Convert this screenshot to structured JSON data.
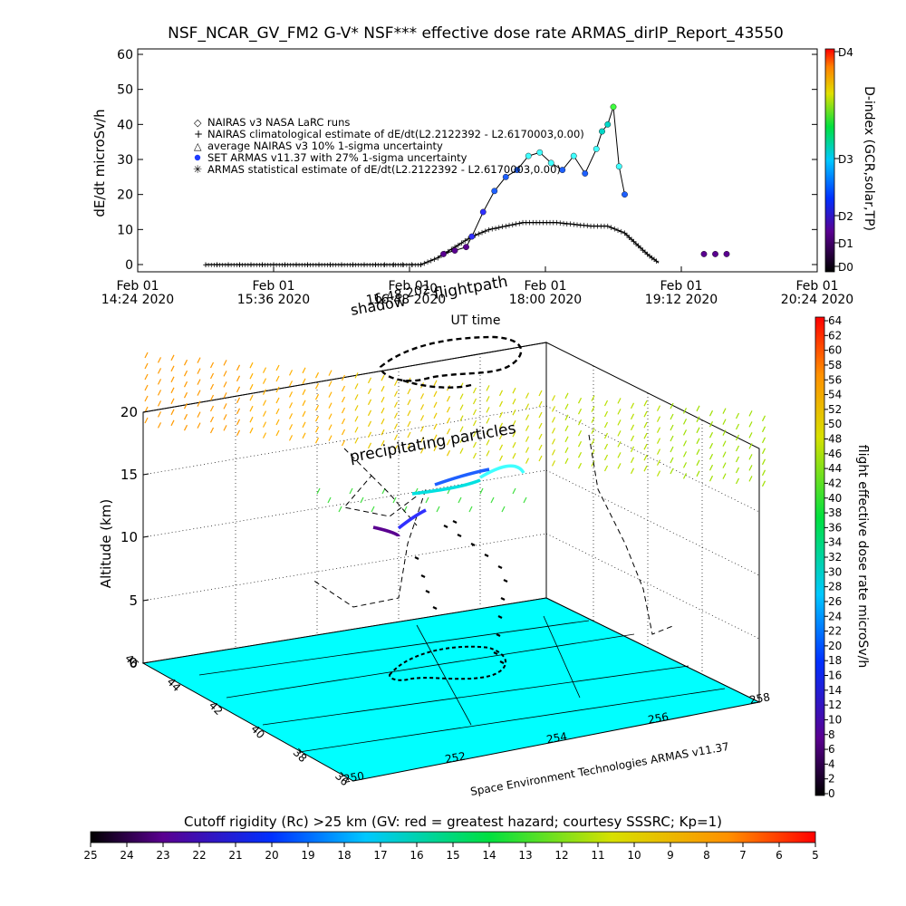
{
  "chart_data": [
    {
      "type": "scatter",
      "title": "NSF_NCAR_GV_FM2 G-V* NSF*** effective dose rate ARMAS_dirIP_Report_43550",
      "ylabel": "dE/dt microSv/h",
      "xlabel": "UT time",
      "ylim": [
        0,
        60
      ],
      "y_ticks": [
        "0",
        "10",
        "20",
        "30",
        "40",
        "50",
        "60"
      ],
      "x_ticks": [
        {
          "label1": "Feb 01",
          "label2": "14:24 2020"
        },
        {
          "label1": "Feb 01",
          "label2": "15:36 2020"
        },
        {
          "label1": "Feb 01",
          "label2": "16:48 2020"
        },
        {
          "label1": "Feb 01",
          "label2": "18:00 2020"
        },
        {
          "label1": "Feb 01",
          "label2": "19:12 2020"
        },
        {
          "label1": "Feb 01",
          "label2": "20:24 2020"
        }
      ],
      "xlim_hours": [
        14.4,
        20.4
      ],
      "legend": [
        "NAIRAS v3 NASA LaRC runs",
        "NAIRAS climatological estimate of dE/dt(L2.2122392 - L2.6170003,0.00)",
        "average NAIRAS v3 10% 1-sigma uncertainty",
        "SET ARMAS v11.37 with 27% 1-sigma uncertainty",
        "ARMAS statistical estimate of dE/dt(L2.2122392 - L2.6170003,0.00)"
      ],
      "dindex_bar": {
        "title": "D-index (GCR,solar,TP)",
        "ticks": [
          "D0",
          "D1",
          "D2",
          "D3",
          "D4"
        ]
      },
      "series": [
        {
          "name": "NAIRAS climatological estimate of dE/dt(L2.2122392 - L2.6170003,0.00)",
          "x": [
            15.0,
            15.5,
            16.0,
            16.5,
            16.9,
            17.05,
            17.2,
            17.35,
            17.5,
            17.65,
            17.8,
            17.95,
            18.1,
            18.25,
            18.4,
            18.55,
            18.7,
            18.8,
            18.9,
            19.0
          ],
          "y": [
            0,
            0,
            0,
            0,
            0,
            2,
            5,
            8,
            10,
            11,
            12,
            12,
            12,
            11.5,
            11,
            11,
            9,
            6,
            3,
            0.5
          ]
        },
        {
          "name": "SET ARMAS v11.37 with 27% 1-sigma uncertainty",
          "x": [
            17.1,
            17.2,
            17.3,
            17.35,
            17.45,
            17.55,
            17.65,
            17.75,
            17.85,
            17.95,
            18.05,
            18.15,
            18.25,
            18.35,
            18.45,
            18.5,
            18.55,
            18.6,
            18.65,
            18.7,
            19.4,
            19.5,
            19.6
          ],
          "y": [
            3,
            4,
            5,
            8,
            15,
            21,
            25,
            27,
            31,
            32,
            29,
            27,
            31,
            26,
            33,
            38,
            40,
            45,
            28,
            20,
            3,
            3,
            3
          ]
        }
      ]
    },
    {
      "type": "scatter",
      "title": "",
      "zlabel": "Altitude (km)",
      "z_ticks": [
        "0",
        "5",
        "10",
        "15",
        "20"
      ],
      "lon_ticks": [
        "250",
        "252",
        "254",
        "256",
        "258"
      ],
      "lat_ticks": [
        "36",
        "38",
        "40",
        "42",
        "44",
        "46"
      ],
      "annotations": [
        "shadow",
        "16:48 2020",
        "flightpath",
        "precipitating particles",
        "Space Environment Technologies ARMAS v11.37"
      ],
      "dose_bar": {
        "title": "flight effective dose rate microSv/h",
        "ticks": [
          "0",
          "2",
          "4",
          "6",
          "8",
          "10",
          "12",
          "14",
          "16",
          "18",
          "20",
          "22",
          "24",
          "26",
          "28",
          "30",
          "32",
          "34",
          "36",
          "38",
          "40",
          "42",
          "44",
          "46",
          "48",
          "50",
          "52",
          "54",
          "56",
          "58",
          "60",
          "62",
          "64"
        ]
      },
      "rigidity_bar": {
        "title": "Cutoff rigidity (Rc) >25 km (GV: red = greatest hazard; courtesy SSSRC; Kp=1)",
        "ticks": [
          "25",
          "24",
          "23",
          "22",
          "21",
          "20",
          "19",
          "18",
          "17",
          "16",
          "15",
          "14",
          "13",
          "12",
          "11",
          "10",
          "9",
          "8",
          "7",
          "6",
          "5"
        ]
      }
    }
  ]
}
